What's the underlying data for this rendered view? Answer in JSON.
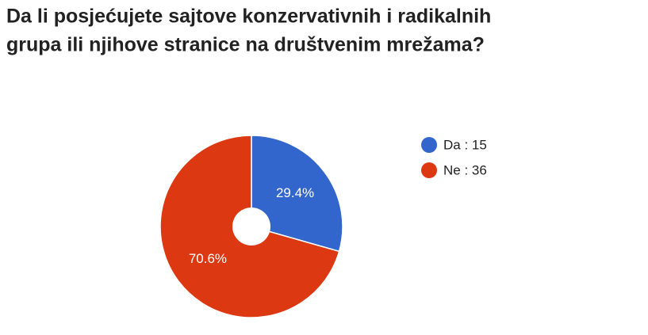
{
  "chart_data": {
    "type": "pie",
    "title": [
      "Da li posjećujete sajtove konzervativnih i radikalnih",
      "grupa ili njihove stranice na društvenim mrežama?"
    ],
    "categories": [
      "Da : 15",
      "Ne : 36"
    ],
    "values": [
      29.4,
      70.6
    ],
    "value_labels": [
      "29.4%",
      "70.6%"
    ],
    "colors": [
      "#3366cc",
      "#dc3912"
    ],
    "hole": true,
    "legend": "right"
  }
}
